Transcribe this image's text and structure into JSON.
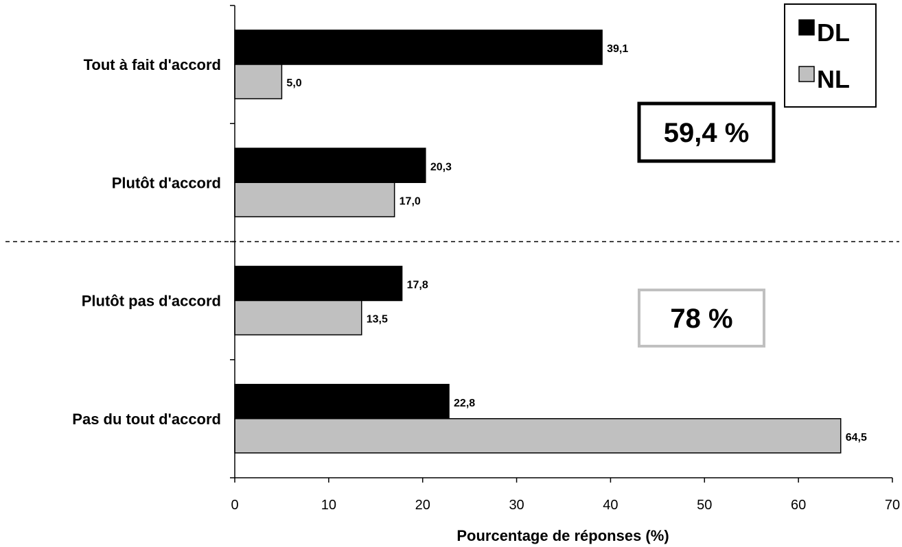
{
  "chart_data": {
    "type": "bar",
    "orientation": "horizontal",
    "categories": [
      "Tout à fait d'accord",
      "Plutôt d'accord",
      "Plutôt pas d'accord",
      "Pas du tout d'accord"
    ],
    "series": [
      {
        "name": "DL",
        "color": "#000000",
        "values": [
          39.1,
          20.3,
          17.8,
          22.8
        ],
        "labels": [
          "39,1",
          "20,3",
          "17,8",
          "22,8"
        ]
      },
      {
        "name": "NL",
        "color": "#c0c0c0",
        "values": [
          5.0,
          17.0,
          13.5,
          64.5
        ],
        "labels": [
          "5,0",
          "17,0",
          "13,5",
          "64,5"
        ]
      }
    ],
    "xlabel": "Pourcentage de réponses (%)",
    "xlim": [
      0,
      70
    ],
    "xticks": [
      0,
      10,
      20,
      30,
      40,
      50,
      60,
      70
    ],
    "legend_position": "top-right",
    "annotations": [
      {
        "text": "59,4 %",
        "color": "#000000",
        "group": "agree"
      },
      {
        "text": "78 %",
        "color": "#c0c0c0",
        "group": "disagree"
      }
    ],
    "separator": "dashed line between agree and disagree categories",
    "grid": false
  }
}
